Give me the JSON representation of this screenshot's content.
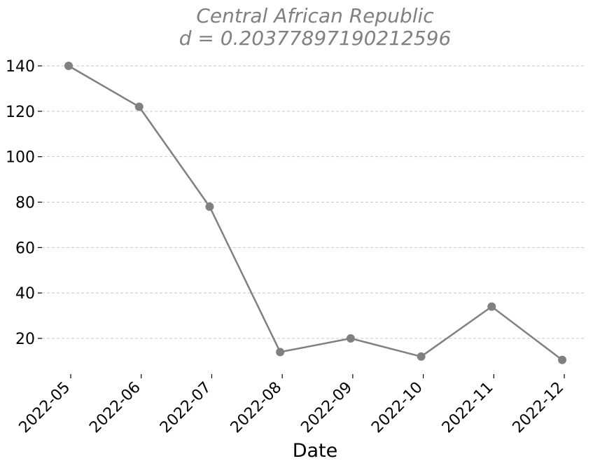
{
  "chart_data": {
    "type": "line",
    "title": "Central African Republic",
    "subtitle": "d = 0.20377897190212596",
    "xlabel": "Date",
    "ylabel": "",
    "x": [
      "2022-05",
      "2022-06",
      "2022-07",
      "2022-08",
      "2022-09",
      "2022-10",
      "2022-11",
      "2022-12"
    ],
    "series": [
      {
        "values": [
          140,
          122,
          78,
          14,
          20,
          12,
          34,
          10.5
        ]
      }
    ],
    "yticks": [
      20,
      40,
      60,
      80,
      100,
      120,
      140
    ],
    "ylim": [
      5,
      145
    ],
    "grid": "horizontal",
    "color": "#808080"
  }
}
